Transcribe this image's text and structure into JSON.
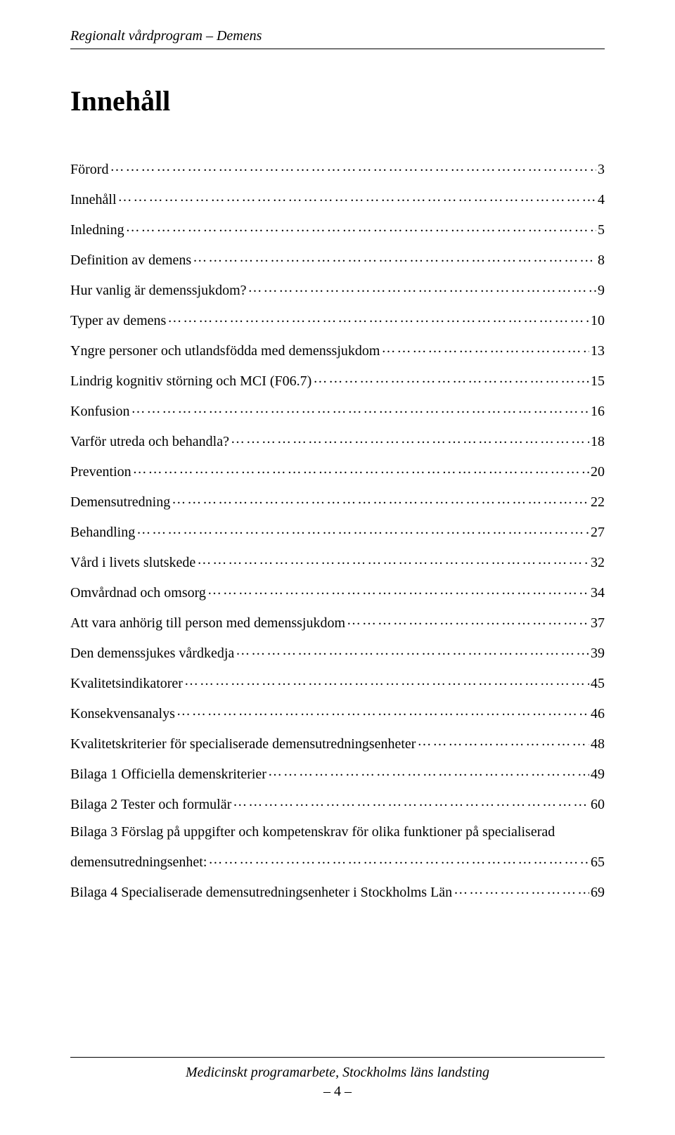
{
  "header": {
    "running_title": "Regionalt vårdprogram – Demens"
  },
  "title": "Innehåll",
  "toc": [
    {
      "label": "Förord",
      "page": "3"
    },
    {
      "label": "Innehåll",
      "page": "4"
    },
    {
      "label": "Inledning",
      "page": "5"
    },
    {
      "label": "Definition av demens",
      "page": "8"
    },
    {
      "label": "Hur vanlig är demenssjukdom?",
      "page": "9"
    },
    {
      "label": "Typer av demens",
      "page": "10"
    },
    {
      "label": "Yngre personer och utlandsfödda med demenssjukdom",
      "page": "13"
    },
    {
      "label": "Lindrig kognitiv störning och MCI (F06.7)",
      "page": "15"
    },
    {
      "label": "Konfusion",
      "page": "16"
    },
    {
      "label": "Varför utreda och behandla?",
      "page": "18"
    },
    {
      "label": "Prevention",
      "page": "20"
    },
    {
      "label": "Demensutredning",
      "page": "22"
    },
    {
      "label": "Behandling",
      "page": "27"
    },
    {
      "label": "Vård i livets slutskede",
      "page": "32"
    },
    {
      "label": "Omvårdnad och omsorg",
      "page": "34"
    },
    {
      "label": "Att vara anhörig till person med demenssjukdom",
      "page": "37"
    },
    {
      "label": "Den demenssjukes vårdkedja",
      "page": "39"
    },
    {
      "label": "Kvalitetsindikatorer",
      "page": "45"
    },
    {
      "label": "Konsekvensanalys",
      "page": "46"
    },
    {
      "label": "Kvalitetskriterier för specialiserade demensutredningsenheter",
      "page": "48"
    },
    {
      "label": "Bilaga 1 Officiella demenskriterier",
      "page": "49"
    },
    {
      "label": "Bilaga 2 Tester och formulär",
      "page": "60"
    },
    {
      "label": "Bilaga 3 Förslag på uppgifter och kompetenskrav för  olika funktioner på specialiserad demensutredningsenhet:",
      "page": "65"
    },
    {
      "label": "Bilaga 4  Specialiserade demensutredningsenheter i Stockholms Län",
      "page": "69"
    }
  ],
  "footer": {
    "text": "Medicinskt programarbete, Stockholms läns landsting",
    "page_number": "– 4 –"
  }
}
